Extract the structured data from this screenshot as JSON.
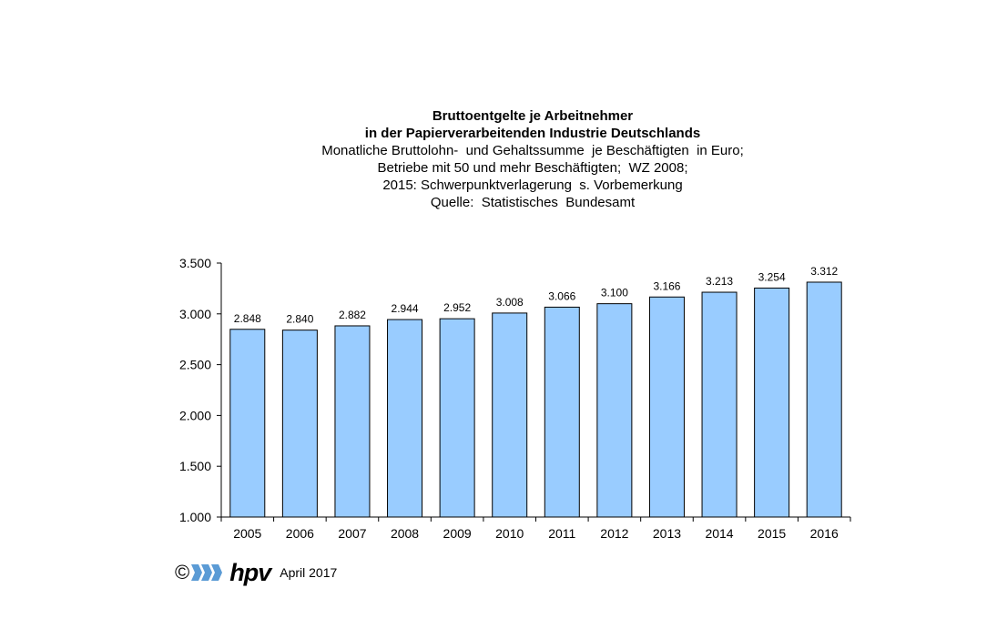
{
  "titles": {
    "line1": "Bruttoentgelte je Arbeitnehmer",
    "line2": "in der Papierverarbeitenden Industrie Deutschlands",
    "line3": "Monatliche Bruttolohn-  und Gehaltssumme  je Beschäftigten  in Euro;",
    "line4": "Betriebe mit 50 und mehr Beschäftigten;  WZ 2008;",
    "line5": "2015: Schwerpunktverlagerung  s. Vorbemerkung",
    "line6": "Quelle:  Statistisches  Bundesamt"
  },
  "footer": {
    "copyright": "©",
    "logo_text": "hpv",
    "date": "April 2017"
  },
  "colors": {
    "bar_fill": "#99ccff",
    "bar_stroke": "#000000",
    "logo_blue": "#5b9bd5"
  },
  "chart_data": {
    "type": "bar",
    "categories": [
      "2005",
      "2006",
      "2007",
      "2008",
      "2009",
      "2010",
      "2011",
      "2012",
      "2013",
      "2014",
      "2015",
      "2016"
    ],
    "values": [
      2848,
      2840,
      2882,
      2944,
      2952,
      3008,
      3066,
      3100,
      3166,
      3213,
      3254,
      3312
    ],
    "value_labels": [
      "2.848",
      "2.840",
      "2.882",
      "2.944",
      "2.952",
      "3.008",
      "3.066",
      "3.100",
      "3.166",
      "3.213",
      "3.254",
      "3.312"
    ],
    "y_ticks": [
      1000,
      1500,
      2000,
      2500,
      3000,
      3500
    ],
    "y_tick_labels": [
      "1.000",
      "1.500",
      "2.000",
      "2.500",
      "3.000",
      "3.500"
    ],
    "ylim": [
      1000,
      3500
    ],
    "grid": false,
    "legend": "none"
  }
}
